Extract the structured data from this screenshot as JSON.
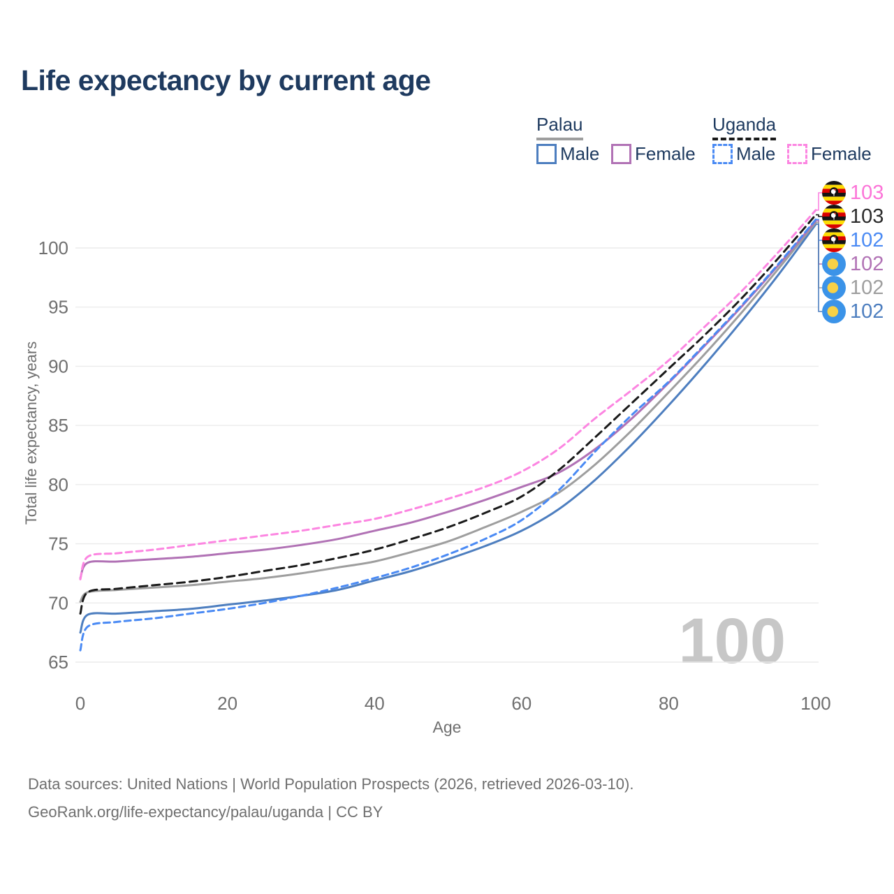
{
  "title": "Life expectancy by current age",
  "legend": {
    "palau": {
      "name": "Palau",
      "male_label": "Male",
      "female_label": "Female"
    },
    "uganda": {
      "name": "Uganda",
      "male_label": "Male",
      "female_label": "Female"
    }
  },
  "chart_data": {
    "type": "line",
    "title": "Life expectancy by current age",
    "xlabel": "Age",
    "ylabel": "Total life expectancy, years",
    "xlim": [
      0,
      100
    ],
    "ylim": [
      65,
      103.5
    ],
    "x_ticks": [
      0,
      20,
      40,
      60,
      80,
      100
    ],
    "y_ticks": [
      65,
      70,
      75,
      80,
      85,
      90,
      95,
      100
    ],
    "grid": "horizontal",
    "legend_position": "top-right",
    "watermark": "100",
    "x": [
      0,
      1,
      5,
      10,
      15,
      20,
      25,
      30,
      35,
      40,
      45,
      50,
      55,
      60,
      65,
      70,
      75,
      80,
      85,
      90,
      95,
      100
    ],
    "series": [
      {
        "name": "Uganda Female",
        "country": "Uganda",
        "sex": "Female",
        "dash": true,
        "color": "#fc85e1",
        "label_color": "#fc74d8",
        "end_label": "103",
        "flag": "uganda-flag-icon",
        "values": [
          72.0,
          73.9,
          74.2,
          74.5,
          74.9,
          75.3,
          75.7,
          76.1,
          76.6,
          77.1,
          77.9,
          78.8,
          79.8,
          81.1,
          83.0,
          85.6,
          88.0,
          90.5,
          93.4,
          96.4,
          99.7,
          103.2
        ]
      },
      {
        "name": "Uganda Both sexes",
        "country": "Uganda",
        "sex": "Both",
        "dash": true,
        "color": "#1a1a1a",
        "label_color": "#2a2a2a",
        "end_label": "103",
        "flag": "uganda-flag-icon",
        "values": [
          69.1,
          70.9,
          71.2,
          71.5,
          71.8,
          72.2,
          72.7,
          73.2,
          73.8,
          74.5,
          75.4,
          76.4,
          77.6,
          79.0,
          81.2,
          84.0,
          86.9,
          89.8,
          92.7,
          95.8,
          99.2,
          102.8
        ]
      },
      {
        "name": "Uganda Male",
        "country": "Uganda",
        "sex": "Male",
        "dash": true,
        "color": "#4a8af4",
        "label_color": "#4a8af4",
        "end_label": "102",
        "flag": "uganda-flag-icon",
        "values": [
          66.0,
          68.0,
          68.4,
          68.7,
          69.1,
          69.5,
          70.0,
          70.6,
          71.3,
          72.1,
          73.0,
          74.1,
          75.4,
          77.0,
          79.5,
          82.8,
          85.9,
          88.7,
          91.9,
          95.2,
          98.7,
          102.4
        ]
      },
      {
        "name": "Palau Female",
        "country": "Palau",
        "sex": "Female",
        "dash": false,
        "color": "#b172b5",
        "label_color": "#b172b5",
        "end_label": "102",
        "flag": "palau-flag-icon",
        "values": [
          72.1,
          73.4,
          73.5,
          73.7,
          73.9,
          74.2,
          74.5,
          74.9,
          75.4,
          76.1,
          76.8,
          77.7,
          78.7,
          79.8,
          81.0,
          83.0,
          85.6,
          88.6,
          91.8,
          95.1,
          98.6,
          102.3
        ]
      },
      {
        "name": "Palau Both sexes",
        "country": "Palau",
        "sex": "Both",
        "dash": false,
        "color": "#9e9e9e",
        "label_color": "#9e9e9e",
        "end_label": "102",
        "flag": "palau-flag-icon",
        "values": [
          70.1,
          70.9,
          71.1,
          71.3,
          71.5,
          71.8,
          72.1,
          72.5,
          73.0,
          73.5,
          74.3,
          75.2,
          76.4,
          77.7,
          79.3,
          81.7,
          84.6,
          87.8,
          91.1,
          94.6,
          98.3,
          102.15
        ]
      },
      {
        "name": "Palau Male",
        "country": "Palau",
        "sex": "Male",
        "dash": false,
        "color": "#4d7ebf",
        "label_color": "#4d7ebf",
        "end_label": "102",
        "flag": "palau-flag-icon",
        "values": [
          67.5,
          69.0,
          69.1,
          69.3,
          69.5,
          69.85,
          70.2,
          70.6,
          71.1,
          71.9,
          72.7,
          73.7,
          74.8,
          76.1,
          77.9,
          80.4,
          83.4,
          86.7,
          90.2,
          93.9,
          97.8,
          102.0
        ]
      }
    ]
  },
  "colors": {
    "title": "#1e3a5f",
    "axis_text": "#6f6f6f",
    "grid": "#ebebeb",
    "watermark": "#c7c7c7",
    "palau_underline": "#9e9e9e",
    "uganda_underline": "#1a1a1a"
  },
  "footer": {
    "line1": "Data sources: United Nations | World Population Prospects (2026, retrieved 2026-03-10).",
    "line2": "GeoRank.org/life-expectancy/palau/uganda | CC BY"
  }
}
